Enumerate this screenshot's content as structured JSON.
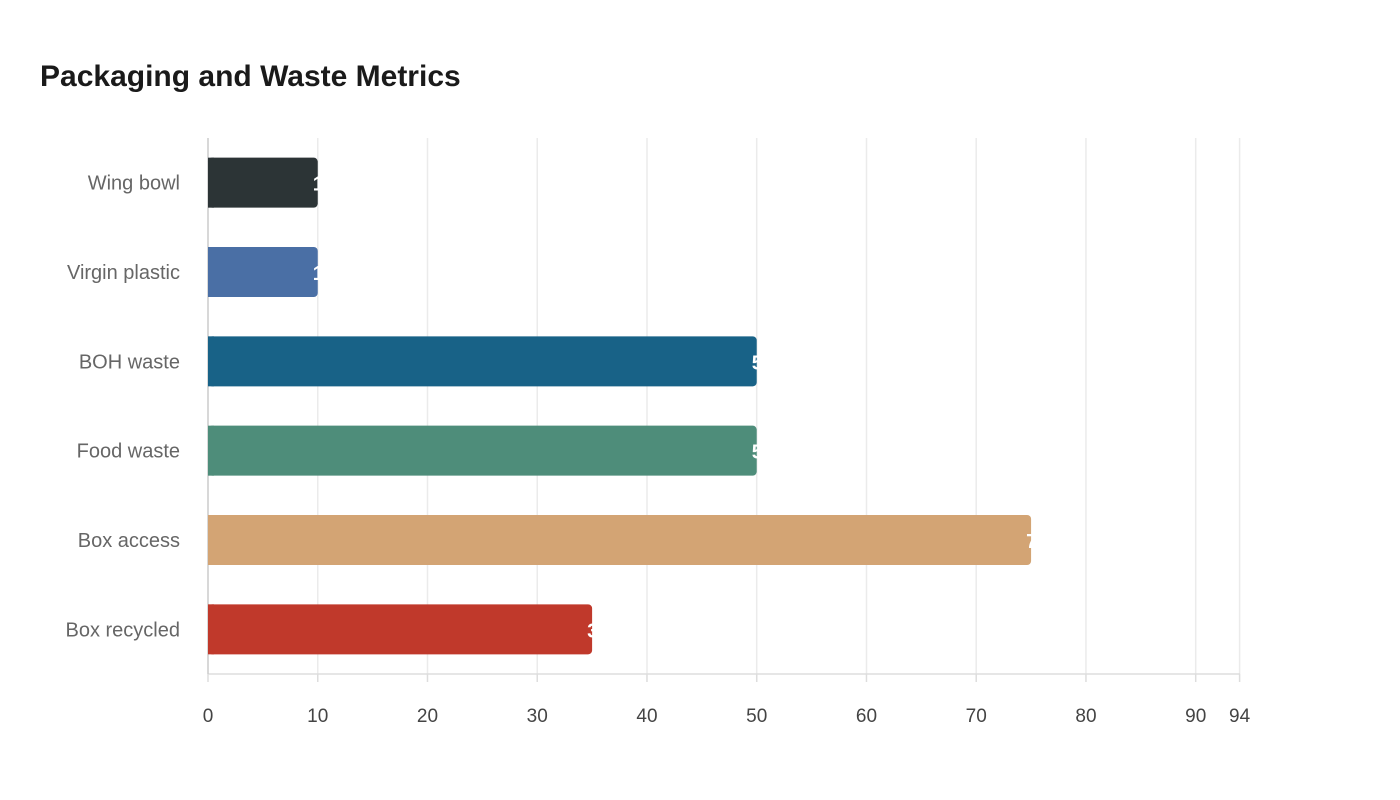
{
  "chart_data": {
    "type": "bar",
    "orientation": "horizontal",
    "title": "Packaging and Waste Metrics",
    "xlabel": "",
    "ylabel": "",
    "categories": [
      "Wing bowl",
      "Virgin plastic",
      "BOH waste",
      "Food waste",
      "Box access",
      "Box recycled"
    ],
    "values": [
      10,
      10,
      50,
      50,
      75,
      35
    ],
    "colors": [
      "#2c3436",
      "#4a6fa5",
      "#186287",
      "#4e8d7a",
      "#d3a474",
      "#c0392b"
    ],
    "xlim": [
      0,
      94
    ],
    "xticks": [
      0,
      10,
      20,
      30,
      40,
      50,
      60,
      70,
      80,
      90,
      94
    ],
    "grid": true,
    "legend": "none"
  }
}
